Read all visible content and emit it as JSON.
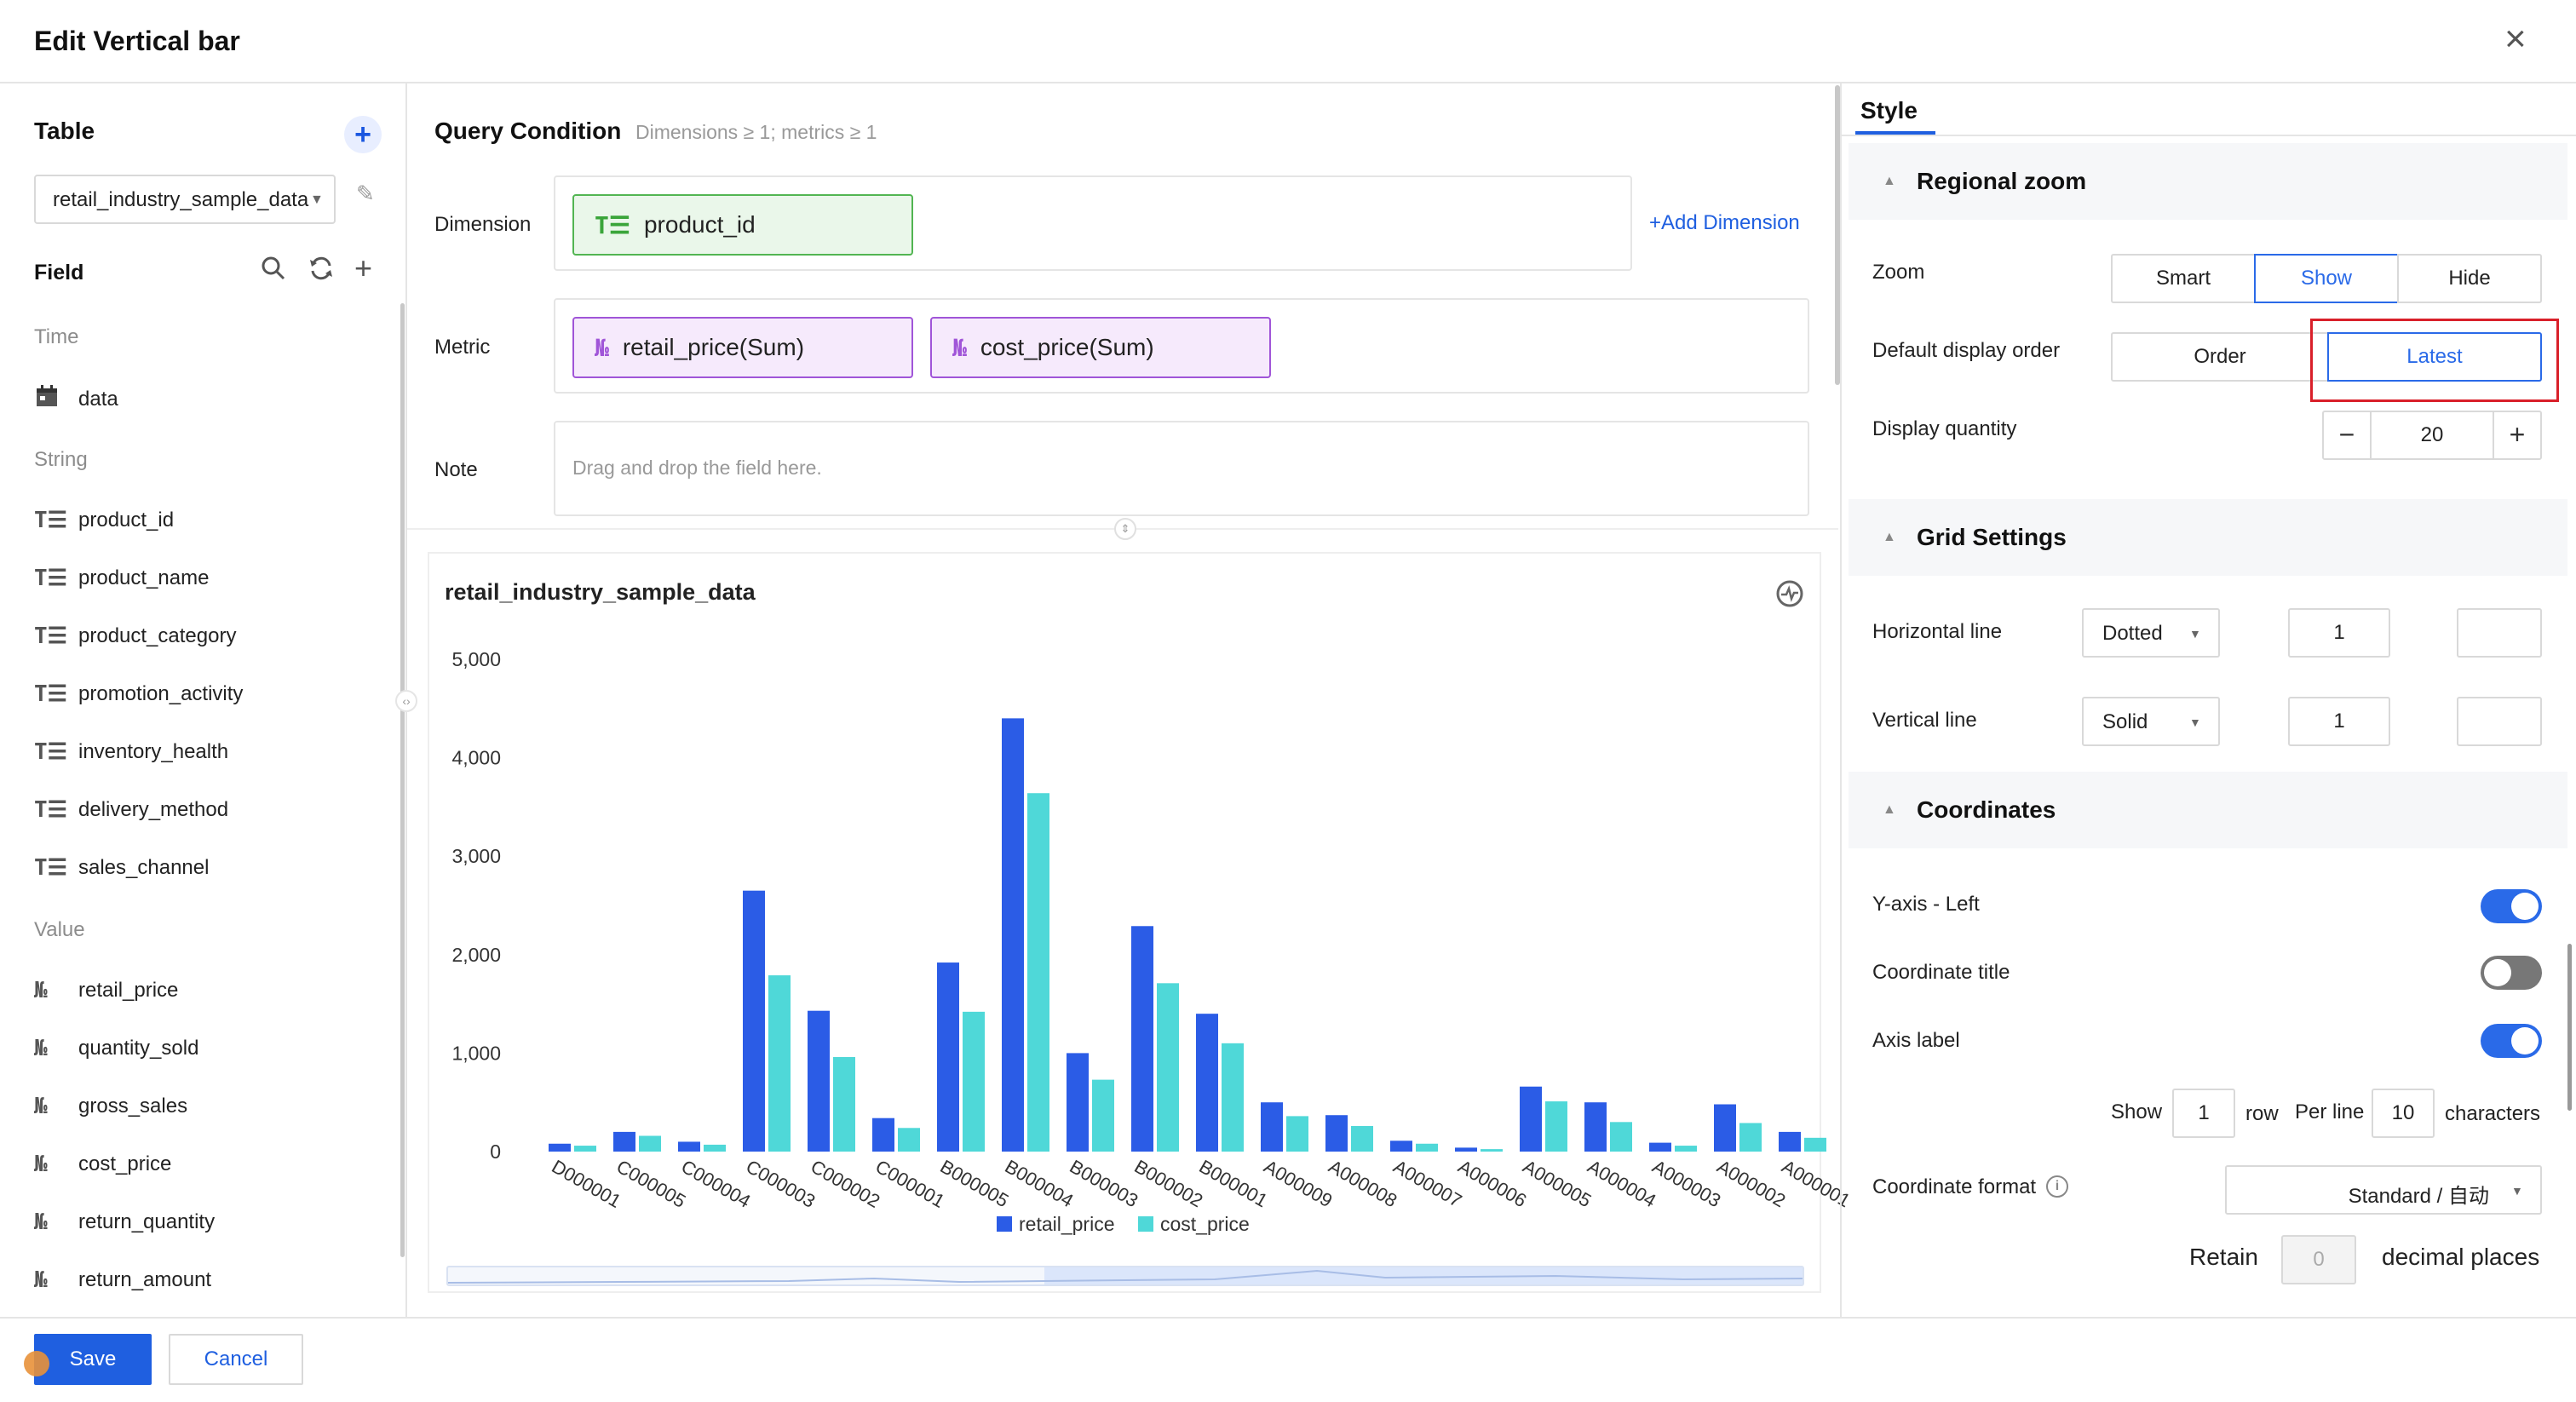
{
  "dialog": {
    "title": "Edit Vertical bar",
    "close_icon": "×"
  },
  "left": {
    "table_heading": "Table",
    "table_select": "retail_industry_sample_data",
    "field_heading": "Field",
    "groups": [
      {
        "label": "Time",
        "fields": [
          {
            "icon": "calendar-icon",
            "name": "data"
          }
        ]
      },
      {
        "label": "String",
        "fields": [
          {
            "icon": "text-type-icon",
            "name": "product_id"
          },
          {
            "icon": "text-type-icon",
            "name": "product_name"
          },
          {
            "icon": "text-type-icon",
            "name": "product_category"
          },
          {
            "icon": "text-type-icon",
            "name": "promotion_activity"
          },
          {
            "icon": "text-type-icon",
            "name": "inventory_health"
          },
          {
            "icon": "text-type-icon",
            "name": "delivery_method"
          },
          {
            "icon": "text-type-icon",
            "name": "sales_channel"
          }
        ]
      },
      {
        "label": "Value",
        "fields": [
          {
            "icon": "number-type-icon",
            "name": "retail_price"
          },
          {
            "icon": "number-type-icon",
            "name": "quantity_sold"
          },
          {
            "icon": "number-type-icon",
            "name": "gross_sales"
          },
          {
            "icon": "number-type-icon",
            "name": "cost_price"
          },
          {
            "icon": "number-type-icon",
            "name": "return_quantity"
          },
          {
            "icon": "number-type-icon",
            "name": "return_amount"
          }
        ]
      }
    ]
  },
  "query": {
    "title": "Query Condition",
    "hint": "Dimensions ≥ 1; metrics ≥ 1",
    "dimension_label": "Dimension",
    "dimension_chip": "product_id",
    "add_dimension": "Add Dimension",
    "metric_label": "Metric",
    "metric_chips": [
      "retail_price(Sum)",
      "cost_price(Sum)"
    ],
    "note_label": "Note",
    "note_placeholder": "Drag and drop the field here.",
    "text_type_glyph": "T☰",
    "number_type_glyph": "№"
  },
  "chart_data": {
    "type": "bar",
    "title": "retail_industry_sample_data",
    "categories": [
      "D000001",
      "C000005",
      "C000004",
      "C000003",
      "C000002",
      "C000001",
      "B000005",
      "B000004",
      "B000003",
      "B000002",
      "B000001",
      "A000009",
      "A000008",
      "A000007",
      "A000006",
      "A000005",
      "A000004",
      "A000003",
      "A000002",
      "A000001"
    ],
    "series": [
      {
        "name": "retail_price",
        "color": "#2b5ce6",
        "values": [
          80,
          200,
          100,
          2650,
          1430,
          340,
          1920,
          4400,
          1000,
          2290,
          1400,
          500,
          370,
          110,
          40,
          660,
          500,
          90,
          480,
          200
        ]
      },
      {
        "name": "cost_price",
        "color": "#4fd8d8",
        "values": [
          60,
          160,
          70,
          1790,
          960,
          240,
          1420,
          3640,
          730,
          1710,
          1100,
          360,
          260,
          80,
          25,
          510,
          300,
          60,
          290,
          140
        ]
      }
    ],
    "ylim": [
      0,
      5000
    ],
    "yticks": [
      "5,000",
      "4,000",
      "3,000",
      "2,000",
      "1,000",
      "0"
    ],
    "legend": "bottom-center",
    "grid": false
  },
  "style": {
    "tab": "Style",
    "regional_zoom": {
      "title": "Regional zoom",
      "zoom_label": "Zoom",
      "zoom_options": [
        "Smart",
        "Show",
        "Hide"
      ],
      "zoom_selected": "Show",
      "order_label": "Default display order",
      "order_options": [
        "Order",
        "Latest"
      ],
      "order_selected": "Latest",
      "quantity_label": "Display quantity",
      "quantity_value": "20",
      "minus": "−",
      "plus": "+"
    },
    "grid": {
      "title": "Grid Settings",
      "h_label": "Horizontal line",
      "h_style": "Dotted",
      "h_width": "1",
      "v_label": "Vertical line",
      "v_style": "Solid",
      "v_width": "1"
    },
    "coordinates": {
      "title": "Coordinates",
      "yaxis_label": "Y-axis - Left",
      "yaxis_on": true,
      "coord_title_label": "Coordinate title",
      "coord_title_on": false,
      "axis_label_label": "Axis label",
      "axis_label_on": true,
      "show_text": "Show",
      "row_value": "1",
      "row_text": "row",
      "per_line_text": "Per line",
      "chars_value": "10",
      "chars_text": "characters",
      "format_label": "Coordinate format",
      "format_value": "Standard / 自动",
      "retain_text": "Retain",
      "decimal_value": "0",
      "decimal_text": "decimal places"
    }
  },
  "footer": {
    "save": "Save",
    "cancel": "Cancel"
  },
  "colors": {
    "accent": "#1f5fe0",
    "highlight_box": "#d9202a"
  }
}
